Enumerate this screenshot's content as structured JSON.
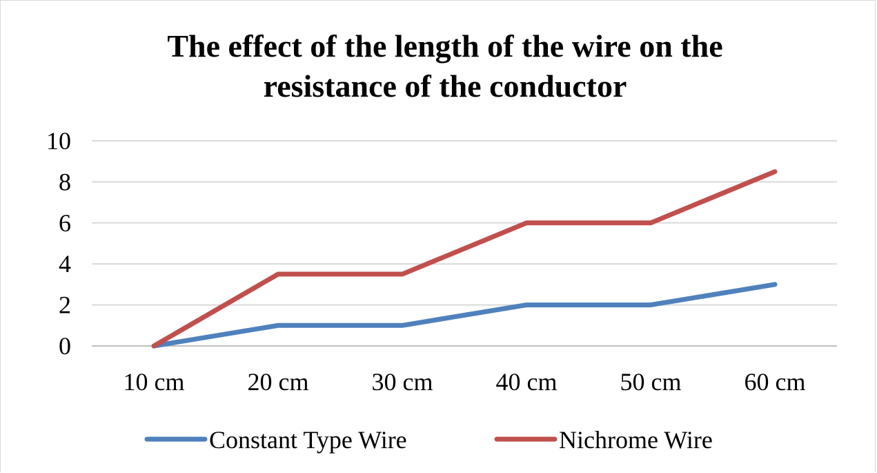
{
  "chart_data": {
    "type": "line",
    "title": "The effect of the length of the wire on the resistance of the conductor",
    "title_lines": [
      "The effect of the length of the wire on the",
      "resistance of the conductor"
    ],
    "categories": [
      "10 cm",
      "20 cm",
      "30 cm",
      "40 cm",
      "50 cm",
      "60 cm"
    ],
    "series": [
      {
        "name": "Constant Type Wire",
        "color": "#4f81bd",
        "values": [
          0,
          1,
          1,
          2,
          2,
          3
        ]
      },
      {
        "name": "Nichrome Wire",
        "color": "#c0504d",
        "values": [
          0,
          3.5,
          3.5,
          6,
          6,
          8.5
        ]
      }
    ],
    "ylim": [
      0,
      10
    ],
    "yticks": [
      "0",
      "2",
      "4",
      "6",
      "8",
      "10"
    ],
    "xlabel": "",
    "ylabel": "",
    "grid": true,
    "legend": "bottom"
  }
}
